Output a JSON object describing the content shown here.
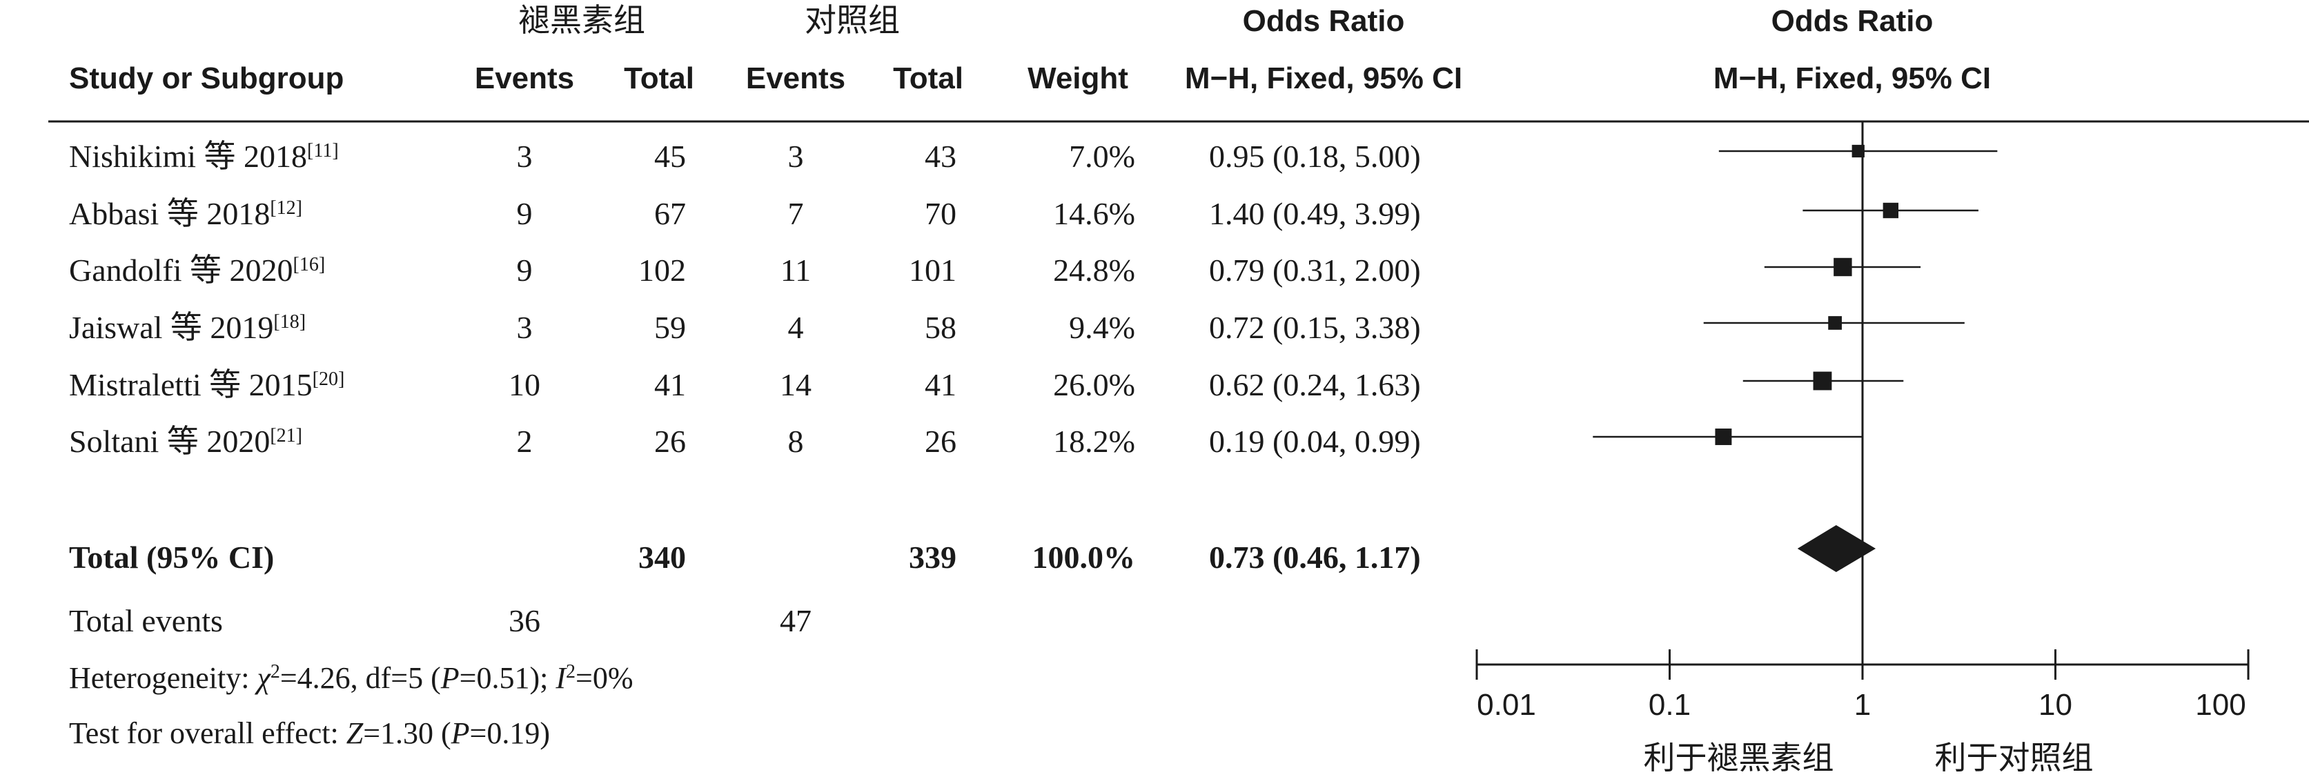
{
  "headers": {
    "group1": "褪黑素组",
    "group2": "对照组",
    "study": "Study or Subgroup",
    "events1": "Events",
    "total1": "Total",
    "events2": "Events",
    "total2": "Total",
    "weight": "Weight",
    "or_title": "Odds Ratio",
    "or_method": "M−H, Fixed, 95% CI",
    "plot_title": "Odds Ratio",
    "plot_method": "M−H, Fixed, 95% CI"
  },
  "studies": [
    {
      "name": "Nishikimi 等 2018",
      "ref": "[11]",
      "events1": "3",
      "total1": "45",
      "events2": "3",
      "total2": "43",
      "weight": "7.0%",
      "ci_text": "0.95 (0.18, 5.00)"
    },
    {
      "name": "Abbasi 等 2018",
      "ref": "[12]",
      "events1": "9",
      "total1": "67",
      "events2": "7",
      "total2": "70",
      "weight": "14.6%",
      "ci_text": "1.40 (0.49, 3.99)"
    },
    {
      "name": "Gandolfi 等 2020",
      "ref": "[16]",
      "events1": "9",
      "total1": "102",
      "events2": "11",
      "total2": "101",
      "weight": "24.8%",
      "ci_text": "0.79 (0.31, 2.00)"
    },
    {
      "name": "Jaiswal 等 2019",
      "ref": "[18]",
      "events1": "3",
      "total1": "59",
      "events2": "4",
      "total2": "58",
      "weight": "9.4%",
      "ci_text": "0.72 (0.15, 3.38)"
    },
    {
      "name": "Mistraletti 等 2015",
      "ref": "[20]",
      "events1": "10",
      "total1": "41",
      "events2": "14",
      "total2": "41",
      "weight": "26.0%",
      "ci_text": "0.62 (0.24, 1.63)"
    },
    {
      "name": "Soltani 等 2020",
      "ref": "[21]",
      "events1": "2",
      "total1": "26",
      "events2": "8",
      "total2": "26",
      "weight": "18.2%",
      "ci_text": "0.19 (0.04, 0.99)"
    }
  ],
  "total": {
    "label": "Total (95% CI)",
    "total1": "340",
    "total2": "339",
    "weight": "100.0%",
    "ci_text": "0.73 (0.46, 1.17)"
  },
  "total_events": {
    "label": "Total events",
    "events1": "36",
    "events2": "47"
  },
  "heterogeneity": {
    "prefix": "Heterogeneity: ",
    "chi": "χ",
    "chi_sup": "2",
    "chi_value": "=4.26, df=5 (",
    "p": "P",
    "p_value": "=0.51); ",
    "i": "I",
    "i_sup": "2",
    "i_value": "=0%"
  },
  "overall_effect": {
    "prefix": "Test for overall effect: ",
    "z": "Z",
    "z_value": "=1.30 (",
    "p": "P",
    "p_value": "=0.19)"
  },
  "chart_data": {
    "type": "forest",
    "scale": "log",
    "xlim": [
      0.01,
      100
    ],
    "ticks": [
      0.01,
      0.1,
      1,
      10,
      100
    ],
    "tick_labels": [
      "0.01",
      "0.1",
      "1",
      "10",
      "100"
    ],
    "reference_line": 1,
    "favours_left": "利于褪黑素组",
    "favours_right": "利于对照组",
    "studies": [
      {
        "or": 0.95,
        "lo": 0.18,
        "hi": 5.0,
        "weight": 7.0
      },
      {
        "or": 1.4,
        "lo": 0.49,
        "hi": 3.99,
        "weight": 14.6
      },
      {
        "or": 0.79,
        "lo": 0.31,
        "hi": 2.0,
        "weight": 24.8
      },
      {
        "or": 0.72,
        "lo": 0.15,
        "hi": 3.38,
        "weight": 9.4
      },
      {
        "or": 0.62,
        "lo": 0.24,
        "hi": 1.63,
        "weight": 26.0
      },
      {
        "or": 0.19,
        "lo": 0.04,
        "hi": 0.99,
        "weight": 18.2
      }
    ],
    "pooled": {
      "or": 0.73,
      "lo": 0.46,
      "hi": 1.17
    }
  }
}
